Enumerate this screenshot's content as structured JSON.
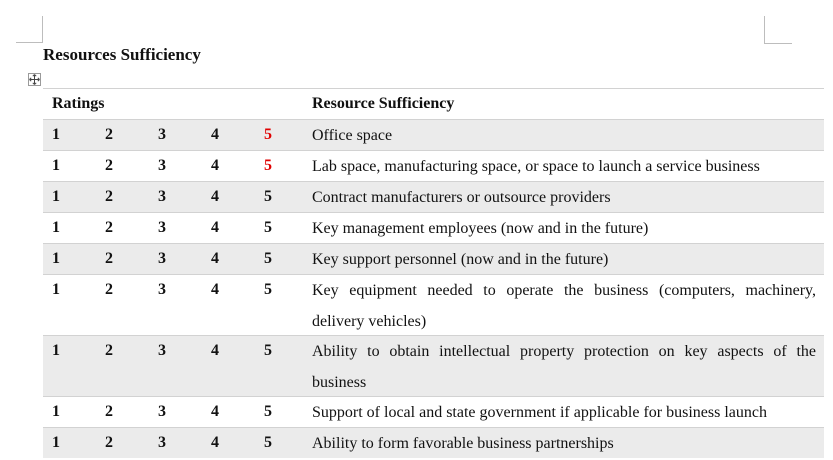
{
  "document": {
    "title": "Resources Sufficiency"
  },
  "table": {
    "header": {
      "ratings": "Ratings",
      "resource": "Resource Sufficiency"
    },
    "scale": [
      "1",
      "2",
      "3",
      "4",
      "5"
    ],
    "rows": [
      {
        "resource": "Office space",
        "highlight_5": true,
        "shaded": true,
        "lines": 1
      },
      {
        "resource": "Lab space, manufacturing space, or space to launch a service business",
        "highlight_5": true,
        "shaded": false,
        "lines": 1
      },
      {
        "resource": "Contract manufacturers or outsource providers",
        "highlight_5": false,
        "shaded": true,
        "lines": 1
      },
      {
        "resource": "Key management employees (now and in the future)",
        "highlight_5": false,
        "shaded": false,
        "lines": 1
      },
      {
        "resource": "Key support personnel (now and in the future)",
        "highlight_5": false,
        "shaded": true,
        "lines": 1
      },
      {
        "resource": "Key equipment needed to operate the business (computers, machinery, delivery vehicles)",
        "highlight_5": false,
        "shaded": false,
        "lines": 2
      },
      {
        "resource": "Ability to obtain intellectual property protection on key aspects of the business",
        "highlight_5": false,
        "shaded": true,
        "lines": 2
      },
      {
        "resource": "Support of local and state government if applicable for business launch",
        "highlight_5": false,
        "shaded": false,
        "lines": 1
      },
      {
        "resource": "Ability to form favorable business partnerships",
        "highlight_5": false,
        "shaded": true,
        "lines": 1
      }
    ]
  },
  "colors": {
    "highlight": "#e00000",
    "row_shade": "#ebebeb"
  },
  "icons": {
    "table_handle": "move-arrows-icon"
  }
}
